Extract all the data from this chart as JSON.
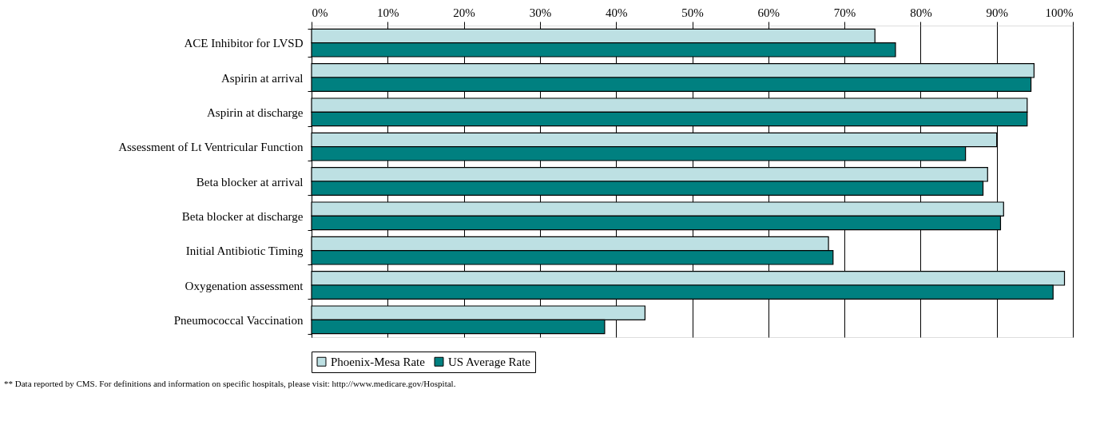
{
  "chart_data": {
    "type": "bar",
    "orientation": "horizontal",
    "categories": [
      "ACE Inhibitor for LVSD",
      "Aspirin at arrival",
      "Aspirin at discharge",
      "Assessment of Lt Ventricular Function",
      "Beta blocker at arrival",
      "Beta blocker at discharge",
      "Initial Antibiotic Timing",
      "Oxygenation assessment",
      "Pneumococcal Vaccination"
    ],
    "series": [
      {
        "name": "Phoenix-Mesa Rate",
        "color": "#bde0e3",
        "values": [
          74.0,
          94.9,
          94.0,
          90.0,
          88.8,
          90.9,
          67.9,
          98.9,
          43.8
        ]
      },
      {
        "name": "US Average Rate",
        "color": "#008080",
        "values": [
          76.7,
          94.5,
          94.0,
          85.9,
          88.2,
          90.5,
          68.5,
          97.4,
          38.5
        ]
      }
    ],
    "xlim": [
      0,
      100
    ],
    "xticks": [
      {
        "value": 0,
        "label": "0%"
      },
      {
        "value": 10,
        "label": "10%"
      },
      {
        "value": 20,
        "label": "20%"
      },
      {
        "value": 30,
        "label": "30%"
      },
      {
        "value": 40,
        "label": "40%"
      },
      {
        "value": 50,
        "label": "50%"
      },
      {
        "value": 60,
        "label": "60%"
      },
      {
        "value": 70,
        "label": "70%"
      },
      {
        "value": 80,
        "label": "80%"
      },
      {
        "value": 90,
        "label": "90%"
      },
      {
        "value": 100,
        "label": "100%"
      }
    ],
    "grid": "x",
    "legend": "bottom",
    "annotations": [
      "** Data reported by CMS.  For definitions and information on specific hospitals, please visit: http://www.medicare.gov/Hospital."
    ]
  }
}
